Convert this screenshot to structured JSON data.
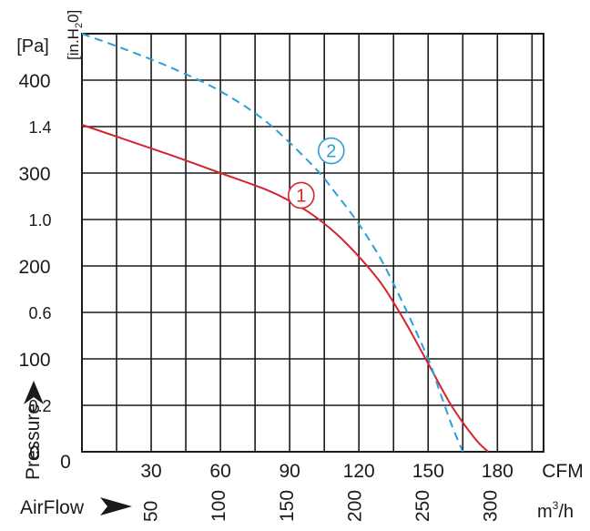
{
  "chart_data": {
    "type": "line",
    "title": "",
    "pressure_units": {
      "pa": "[Pa]",
      "inh2o_prefix": "[in.H",
      "inh2o_sub": "2",
      "inh2o_suffix": "0]"
    },
    "y_pa": {
      "unit": "[Pa]",
      "range": [
        0,
        450
      ],
      "ticks": [
        0,
        100,
        200,
        300,
        400
      ],
      "tick_labels": [
        "0",
        "100",
        "200",
        "300",
        "400"
      ]
    },
    "y_inh2o": {
      "range": [
        0,
        1.8
      ],
      "ticks": [
        0.2,
        0.6,
        1.0,
        1.4
      ],
      "tick_labels": [
        "0.2",
        "0.6",
        "1.0",
        "1.4"
      ]
    },
    "x_cfm": {
      "unit": "CFM",
      "range": [
        0,
        200
      ],
      "ticks": [
        30,
        60,
        90,
        120,
        150,
        180
      ],
      "tick_labels": [
        "30",
        "60",
        "90",
        "120",
        "150",
        "180"
      ]
    },
    "x_m3h": {
      "unit_main": "m",
      "unit_sup": "3",
      "unit_tail": "/h",
      "ticks": [
        50,
        100,
        150,
        200,
        250,
        300
      ],
      "tick_labels": [
        "50",
        "100",
        "150",
        "200",
        "250",
        "300"
      ]
    },
    "labels": {
      "pressure": "Pressure",
      "airflow": "AirFlow"
    },
    "grid": true,
    "series": [
      {
        "marker_label": "1",
        "color": "#d6242e",
        "style": "solid",
        "x_cfm": [
          0,
          20,
          40,
          60,
          80,
          90,
          100,
          110,
          120,
          130,
          140,
          150,
          160,
          170,
          176
        ],
        "y_pa": [
          352,
          335,
          318,
          300,
          282,
          270,
          255,
          235,
          210,
          180,
          140,
          95,
          50,
          15,
          0
        ],
        "label_at": {
          "x_cfm": 95,
          "y_pa": 276
        }
      },
      {
        "marker_label": "2",
        "color": "#2a9fd6",
        "style": "dashed",
        "x_cfm": [
          0,
          20,
          40,
          60,
          80,
          100,
          110,
          120,
          130,
          140,
          150,
          155,
          160,
          165
        ],
        "y_pa": [
          450,
          432,
          412,
          388,
          355,
          308,
          278,
          245,
          205,
          155,
          100,
          65,
          30,
          0
        ],
        "label_at": {
          "x_cfm": 108,
          "y_pa": 324
        }
      }
    ]
  }
}
